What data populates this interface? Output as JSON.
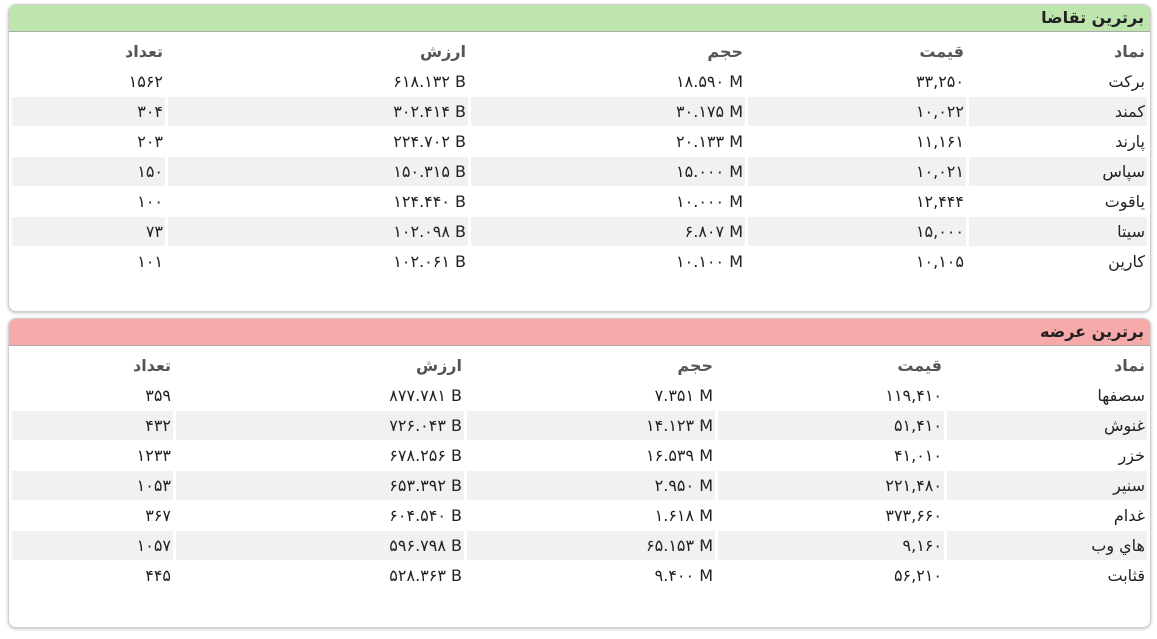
{
  "tables": [
    {
      "title": "برترین تقاضا",
      "columns": [
        "نماد",
        "قیمت",
        "حجم",
        "ارزش",
        "تعداد"
      ],
      "rows": [
        [
          "برکت",
          "۳۳,۲۵۰",
          "۱۸.۵۹۰ M",
          "۶۱۸.۱۳۲ B",
          "۱۵۶۲"
        ],
        [
          "کمند",
          "۱۰,۰۲۲",
          "۳۰.۱۷۵ M",
          "۳۰۲.۴۱۴ B",
          "۳۰۴"
        ],
        [
          "پارند",
          "۱۱,۱۶۱",
          "۲۰.۱۳۳ M",
          "۲۲۴.۷۰۲ B",
          "۲۰۳"
        ],
        [
          "سپاس",
          "۱۰,۰۲۱",
          "۱۵.۰۰۰ M",
          "۱۵۰.۳۱۵ B",
          "۱۵۰"
        ],
        [
          "یاقوت",
          "۱۲,۴۴۴",
          "۱۰.۰۰۰ M",
          "۱۲۴.۴۴۰ B",
          "۱۰۰"
        ],
        [
          "سیتا",
          "۱۵,۰۰۰",
          "۶.۸۰۷ M",
          "۱۰۲.۰۹۸ B",
          "۷۳"
        ],
        [
          "کارین",
          "۱۰,۱۰۵",
          "۱۰.۱۰۰ M",
          "۱۰۲.۰۶۱ B",
          "۱۰۱"
        ]
      ]
    },
    {
      "title": "برترین عرضه",
      "columns": [
        "نماد",
        "قیمت",
        "حجم",
        "ارزش",
        "تعداد"
      ],
      "rows": [
        [
          "سصفها",
          "۱۱۹,۴۱۰",
          "۷.۳۵۱ M",
          "۸۷۷.۷۸۱ B",
          "۳۵۹"
        ],
        [
          "غنوش",
          "۵۱,۴۱۰",
          "۱۴.۱۲۳ M",
          "۷۲۶.۰۴۳ B",
          "۴۳۲"
        ],
        [
          "خزر",
          "۴۱,۰۱۰",
          "۱۶.۵۳۹ M",
          "۶۷۸.۲۵۶ B",
          "۱۲۳۳"
        ],
        [
          "سنیر",
          "۲۲۱,۴۸۰",
          "۲.۹۵۰ M",
          "۶۵۳.۳۹۲ B",
          "۱۰۵۳"
        ],
        [
          "غدام",
          "۳۷۳,۶۶۰",
          "۱.۶۱۸ M",
          "۶۰۴.۵۴۰ B",
          "۳۶۷"
        ],
        [
          "هاي وب",
          "۹,۱۶۰",
          "۶۵.۱۵۳ M",
          "۵۹۶.۷۹۸ B",
          "۱۰۵۷"
        ],
        [
          "قثابت",
          "۵۶,۲۱۰",
          "۹.۴۰۰ M",
          "۵۲۸.۳۶۳ B",
          "۴۴۵"
        ]
      ]
    }
  ]
}
